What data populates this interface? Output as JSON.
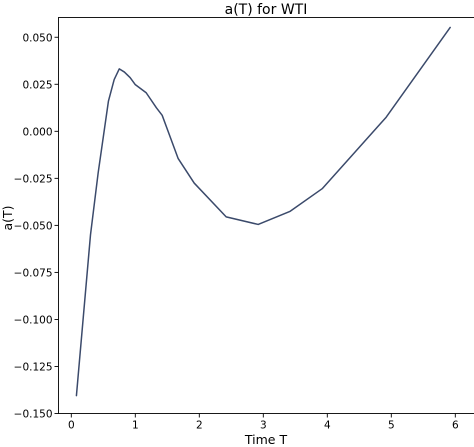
{
  "chart_data": {
    "type": "line",
    "title": "a(T) for WTI",
    "xlabel": "Time T",
    "ylabel": "a(T)",
    "xlim": [
      -0.2,
      6.3
    ],
    "ylim": [
      -0.15,
      0.0605
    ],
    "x_ticks": [
      0,
      1,
      2,
      3,
      4,
      5,
      6
    ],
    "x_tick_labels": [
      "0",
      "1",
      "2",
      "3",
      "4",
      "5",
      "6"
    ],
    "y_ticks": [
      -0.15,
      -0.125,
      -0.1,
      -0.075,
      -0.05,
      -0.025,
      0.0,
      0.025,
      0.05
    ],
    "y_tick_labels": [
      "−0.150",
      "−0.125",
      "−0.100",
      "−0.075",
      "−0.050",
      "−0.025",
      "0.000",
      "0.025",
      "0.050"
    ],
    "grid": false,
    "legend": "none",
    "series": [
      {
        "color": "#3b4a6b",
        "x": [
          0.08,
          0.3,
          0.42,
          0.58,
          0.67,
          0.75,
          0.83,
          0.92,
          1.0,
          1.17,
          1.33,
          1.42,
          1.67,
          1.92,
          2.42,
          2.92,
          3.42,
          3.92,
          4.42,
          4.92,
          5.92
        ],
        "y": [
          -0.1405,
          -0.055,
          -0.022,
          0.016,
          0.0275,
          0.0332,
          0.0315,
          0.0285,
          0.0248,
          0.0205,
          0.0125,
          0.0085,
          -0.0145,
          -0.0275,
          -0.0455,
          -0.0495,
          -0.0425,
          -0.0305,
          -0.0115,
          0.0075,
          0.0552
        ]
      }
    ]
  }
}
